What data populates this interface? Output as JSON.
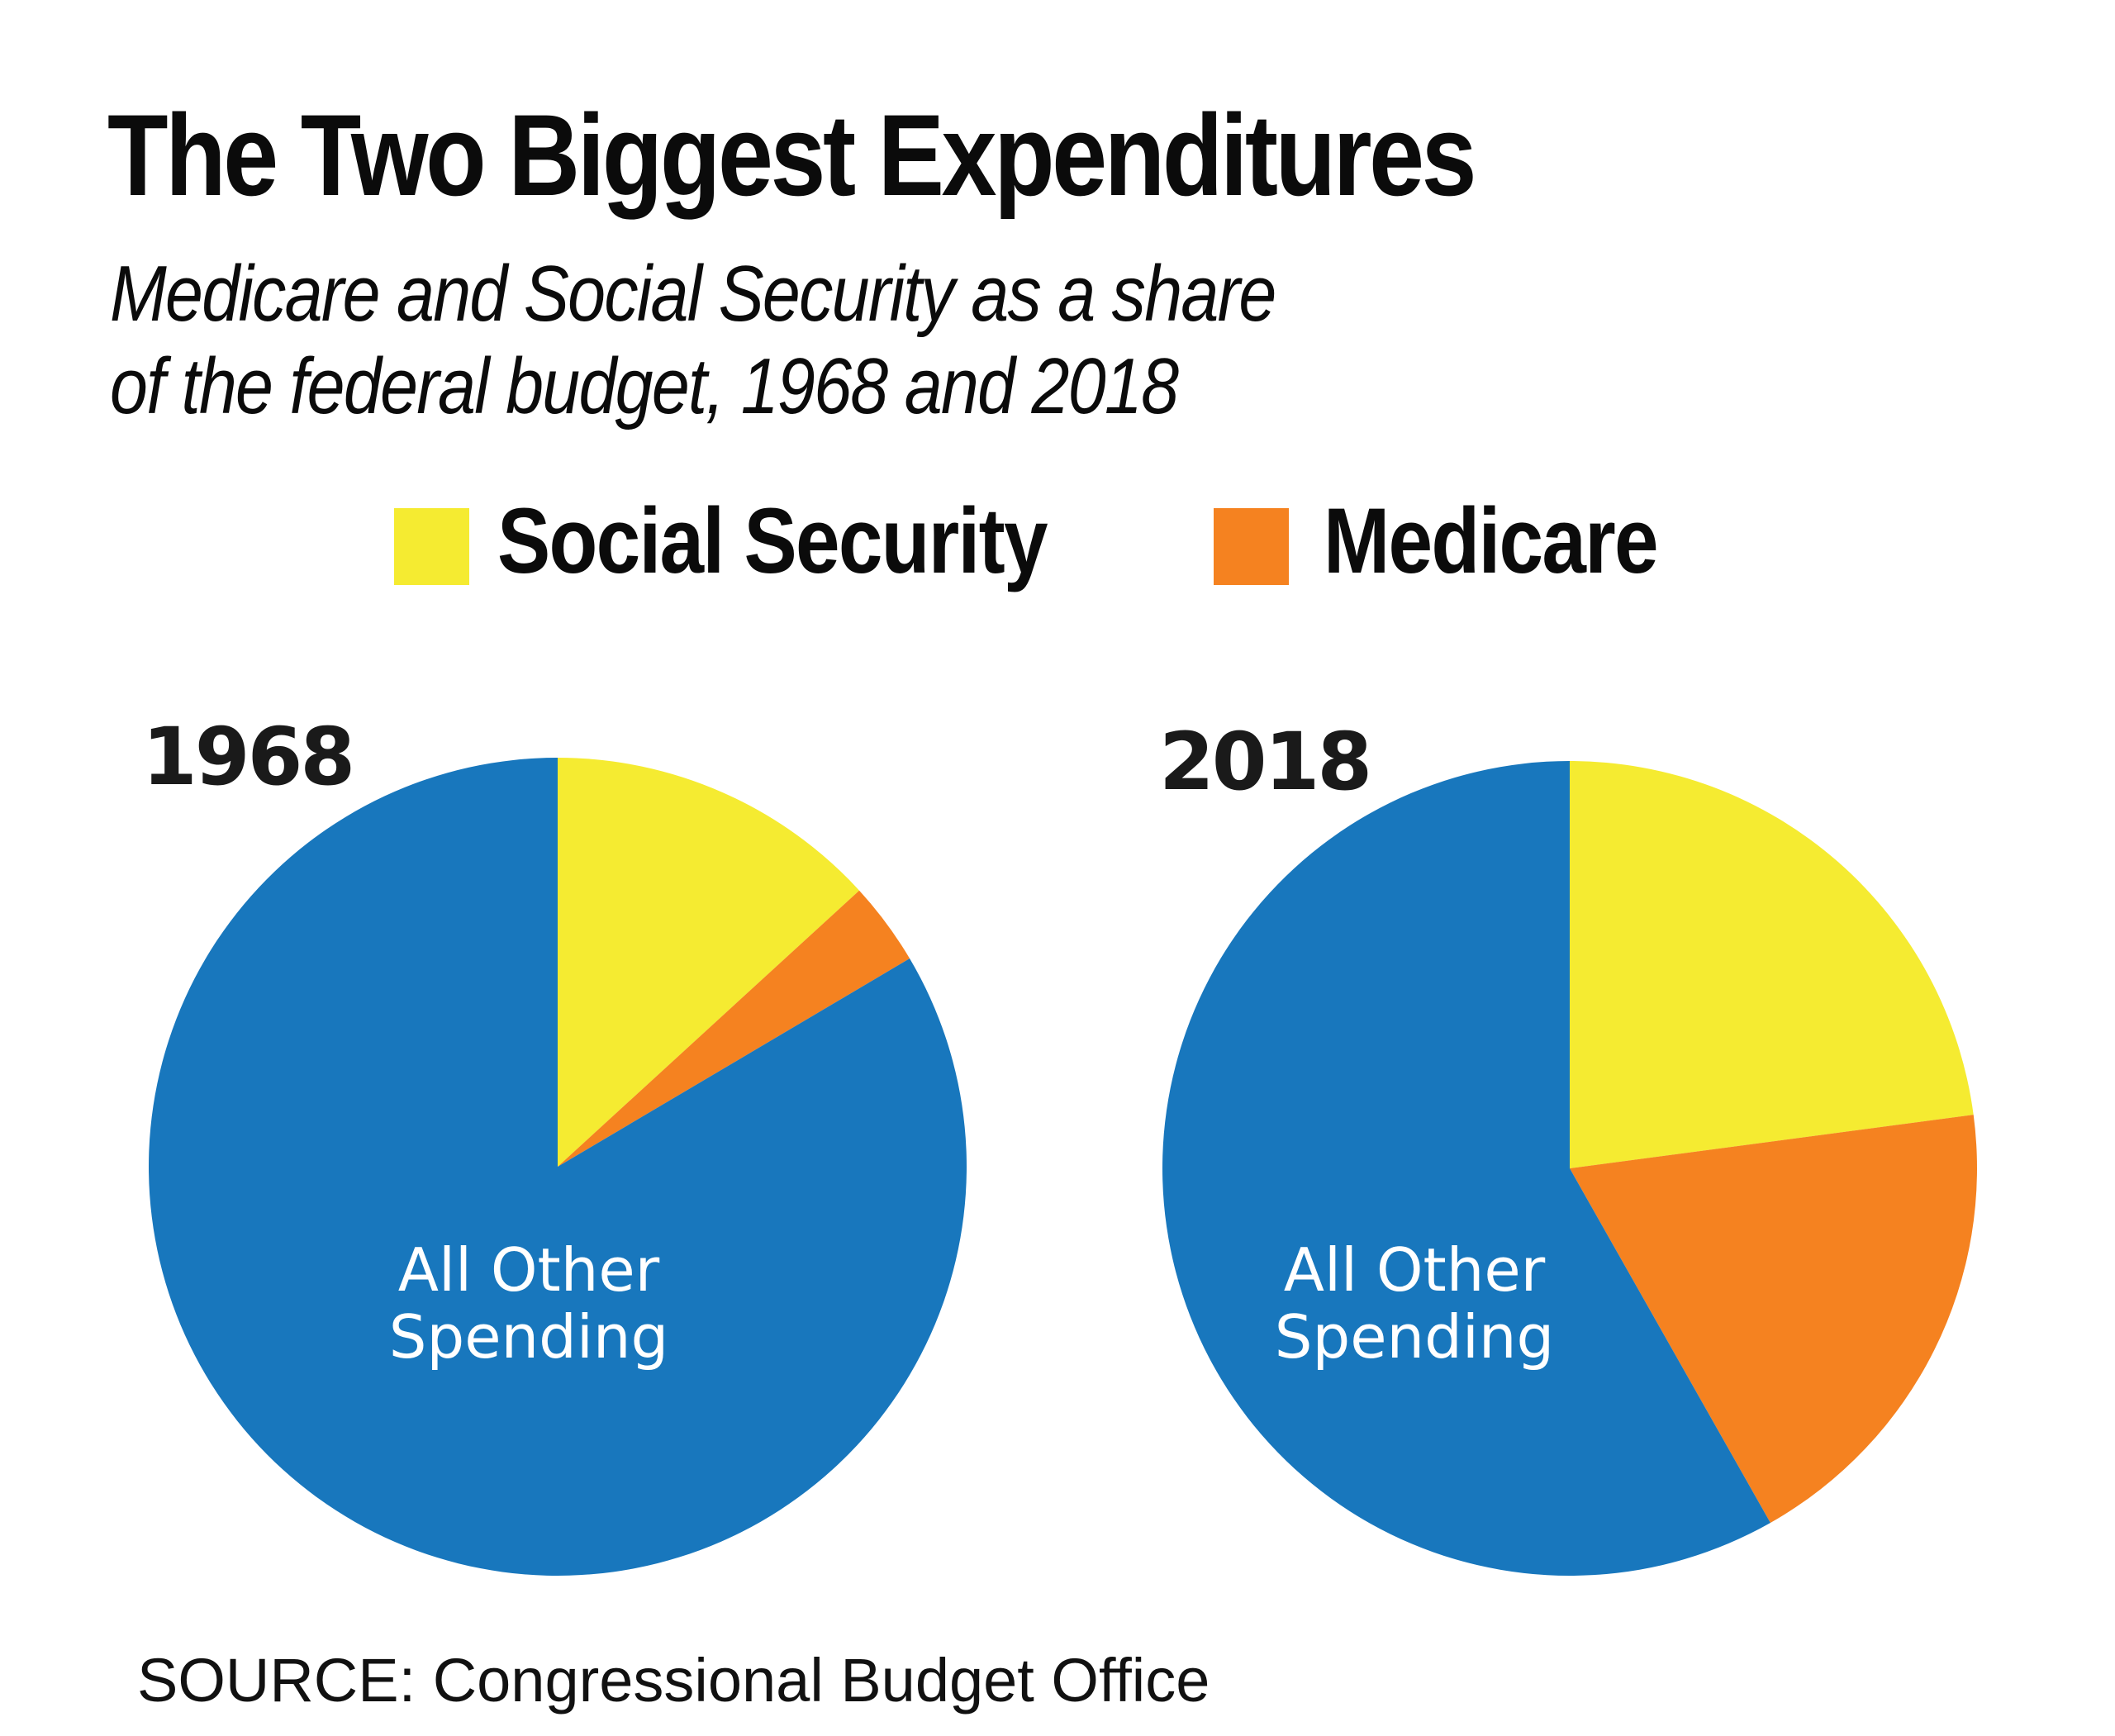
{
  "chart_data": {
    "type": "pie",
    "title": "The Two Biggest Expenditures",
    "subtitle": [
      "Medicare and Social Security as a share",
      "of the federal budget, 1968 and 2018"
    ],
    "legend": {
      "placement": "top-center",
      "entries": [
        {
          "label": "Social Security",
          "color": "#F5EB31"
        },
        {
          "label": "Medicare",
          "color": "#F58220"
        }
      ]
    },
    "unit": "percent of federal budget (estimated from slice angles)",
    "pies": [
      {
        "year": "1968",
        "slices": [
          {
            "name": "Social Security",
            "value": 13.2,
            "color": "#F5EB31"
          },
          {
            "name": "Medicare",
            "value": 3.3,
            "color": "#F58220"
          },
          {
            "name": "All Other Spending",
            "value": 83.5,
            "color": "#1877BD",
            "label_lines": [
              "All Other",
              "Spending"
            ]
          }
        ]
      },
      {
        "year": "2018",
        "slices": [
          {
            "name": "Social Security",
            "value": 22.9,
            "color": "#F5EB31"
          },
          {
            "name": "Medicare",
            "value": 18.9,
            "color": "#F58220"
          },
          {
            "name": "All Other Spending",
            "value": 58.2,
            "color": "#1877BD",
            "label_lines": [
              "All Other",
              "Spending"
            ]
          }
        ]
      }
    ],
    "start_angle": "12 o'clock, clockwise",
    "source": "SOURCE: Congressional Budget Office"
  }
}
